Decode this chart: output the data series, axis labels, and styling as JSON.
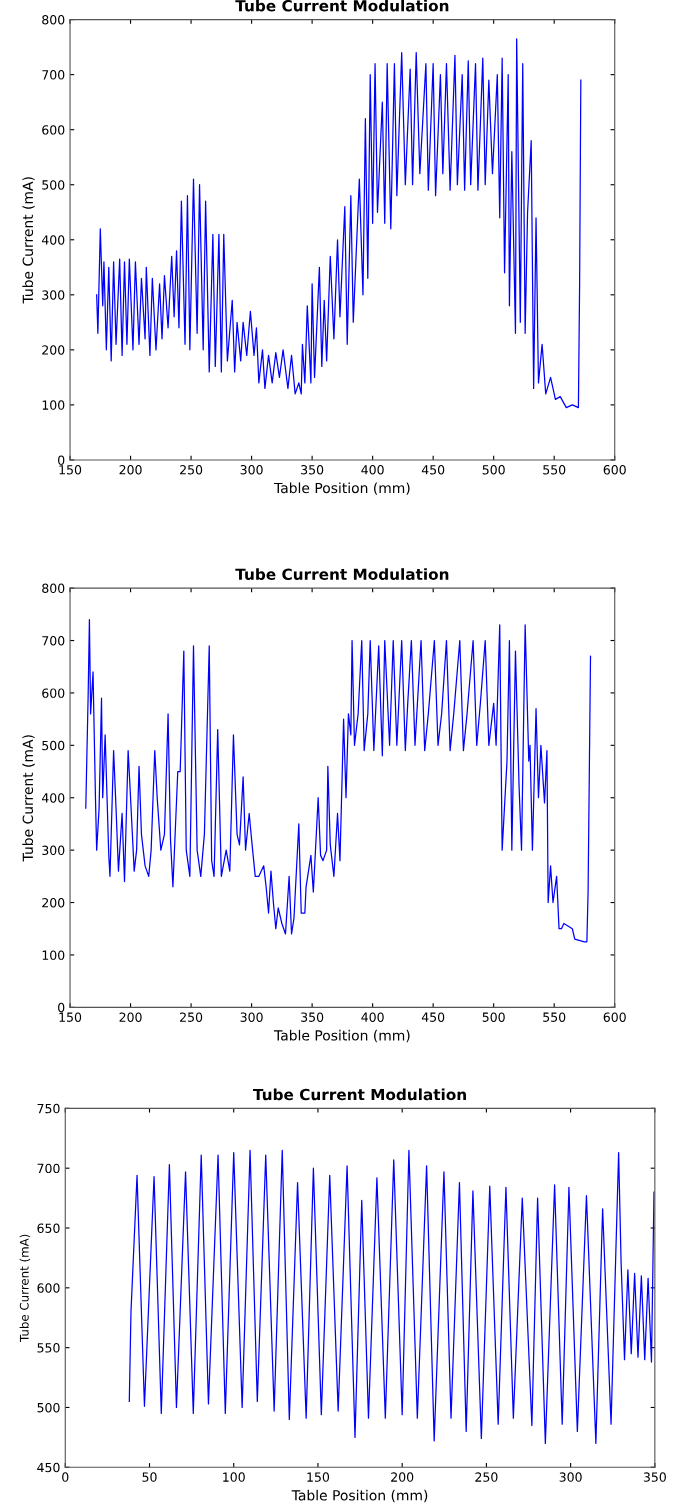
{
  "chart_data": [
    {
      "type": "line",
      "title": "Tube Current Modulation",
      "xlabel": "Table Position (mm)",
      "ylabel": "Tube Current (mA)",
      "xlim": [
        150,
        600
      ],
      "ylim": [
        0,
        800
      ],
      "xticks": [
        150,
        200,
        250,
        300,
        350,
        400,
        450,
        500,
        550,
        600
      ],
      "yticks": [
        0,
        100,
        200,
        300,
        400,
        500,
        600,
        700,
        800
      ],
      "series": [
        {
          "color": "#0000ff",
          "x": [
            172,
            173,
            175,
            177,
            178,
            180,
            182,
            184,
            186,
            188,
            191,
            193,
            195,
            197,
            199,
            202,
            204,
            207,
            209,
            212,
            213,
            216,
            218,
            221,
            224,
            226,
            228,
            231,
            234,
            236,
            238,
            240,
            242,
            245,
            247,
            249,
            252,
            255,
            257,
            260,
            262,
            265,
            268,
            270,
            273,
            275,
            277,
            280,
            284,
            286,
            288,
            291,
            293,
            296,
            299,
            302,
            304,
            306,
            309,
            311,
            314,
            317,
            320,
            323,
            326,
            330,
            333,
            336,
            339,
            341,
            342,
            344,
            346,
            349,
            350,
            352,
            356,
            358,
            360,
            362,
            365,
            368,
            371,
            373,
            377,
            379,
            382,
            384,
            389,
            392,
            394,
            396,
            398,
            400,
            402,
            404,
            408,
            410,
            412,
            415,
            418,
            420,
            424,
            427,
            431,
            433,
            436,
            439,
            444,
            446,
            450,
            452,
            456,
            458,
            461,
            464,
            468,
            470,
            474,
            476,
            479,
            481,
            485,
            487,
            491,
            493,
            496,
            499,
            503,
            505,
            507,
            509,
            512,
            513,
            515,
            518,
            519,
            522,
            524,
            526,
            528,
            531,
            533,
            535,
            537,
            540,
            543,
            547,
            551,
            555,
            560,
            565,
            570,
            571,
            572
          ],
          "values": [
            300,
            230,
            420,
            280,
            360,
            200,
            350,
            180,
            360,
            210,
            365,
            190,
            360,
            210,
            365,
            200,
            360,
            210,
            330,
            220,
            350,
            190,
            330,
            200,
            320,
            220,
            335,
            240,
            370,
            260,
            380,
            240,
            470,
            210,
            480,
            200,
            510,
            230,
            500,
            200,
            470,
            160,
            410,
            170,
            410,
            160,
            410,
            180,
            290,
            160,
            250,
            180,
            250,
            190,
            270,
            190,
            240,
            140,
            200,
            130,
            190,
            140,
            195,
            150,
            200,
            130,
            190,
            120,
            140,
            120,
            210,
            140,
            280,
            140,
            320,
            150,
            350,
            170,
            290,
            180,
            370,
            220,
            400,
            260,
            460,
            210,
            480,
            250,
            510,
            300,
            620,
            330,
            700,
            430,
            720,
            450,
            650,
            430,
            720,
            420,
            720,
            480,
            740,
            500,
            710,
            500,
            740,
            520,
            720,
            490,
            720,
            480,
            700,
            520,
            720,
            490,
            735,
            500,
            700,
            490,
            725,
            500,
            720,
            490,
            730,
            500,
            690,
            520,
            700,
            440,
            730,
            340,
            700,
            280,
            560,
            230,
            765,
            250,
            720,
            230,
            450,
            580,
            130,
            440,
            140,
            210,
            120,
            150,
            110,
            115,
            95,
            100,
            95,
            320,
            690
          ]
        }
      ]
    },
    {
      "type": "line",
      "title": "Tube Current Modulation",
      "xlabel": "Table Position (mm)",
      "ylabel": "Tube Current (mA)",
      "xlim": [
        150,
        600
      ],
      "ylim": [
        0,
        800
      ],
      "xticks": [
        150,
        200,
        250,
        300,
        350,
        400,
        450,
        500,
        550,
        600
      ],
      "yticks": [
        0,
        100,
        200,
        300,
        400,
        500,
        600,
        700,
        800
      ],
      "series": [
        {
          "color": "#0000ff",
          "x": [
            163,
            165,
            166,
            167,
            169,
            171,
            172,
            174,
            176,
            177,
            179,
            182,
            183,
            186,
            188,
            190,
            193,
            195,
            198,
            200,
            203,
            205,
            207,
            209,
            212,
            215,
            217,
            220,
            222,
            225,
            228,
            231,
            233,
            235,
            239,
            241,
            244,
            246,
            249,
            252,
            255,
            258,
            261,
            265,
            267,
            269,
            272,
            275,
            279,
            282,
            285,
            288,
            290,
            293,
            295,
            298,
            300,
            303,
            306,
            310,
            312,
            314,
            316,
            318,
            320,
            322,
            325,
            328,
            331,
            333,
            335,
            339,
            341,
            344,
            345,
            349,
            351,
            355,
            357,
            359,
            362,
            363,
            365,
            368,
            371,
            373,
            376,
            378,
            380,
            382,
            383,
            385,
            388,
            391,
            393,
            396,
            398,
            401,
            405,
            408,
            410,
            414,
            417,
            420,
            424,
            427,
            429,
            432,
            435,
            440,
            443,
            446,
            451,
            454,
            457,
            461,
            464,
            467,
            472,
            475,
            478,
            483,
            486,
            489,
            493,
            496,
            500,
            502,
            505,
            507,
            511,
            513,
            515,
            518,
            521,
            523,
            526,
            529,
            530,
            532,
            535,
            537,
            539,
            542,
            544,
            545,
            547,
            549,
            552,
            554,
            556,
            558,
            565,
            567,
            575,
            577,
            578,
            580
          ],
          "values": [
            380,
            600,
            740,
            560,
            640,
            400,
            300,
            380,
            590,
            400,
            520,
            290,
            250,
            490,
            380,
            260,
            370,
            240,
            490,
            400,
            260,
            300,
            460,
            330,
            270,
            250,
            300,
            490,
            400,
            300,
            330,
            560,
            320,
            230,
            450,
            450,
            680,
            300,
            250,
            690,
            300,
            250,
            330,
            690,
            280,
            250,
            530,
            250,
            300,
            260,
            520,
            330,
            310,
            440,
            300,
            370,
            320,
            250,
            250,
            270,
            230,
            180,
            260,
            200,
            150,
            190,
            160,
            140,
            250,
            140,
            170,
            350,
            180,
            180,
            230,
            290,
            220,
            400,
            290,
            280,
            300,
            460,
            310,
            250,
            370,
            280,
            550,
            400,
            560,
            520,
            700,
            500,
            560,
            700,
            490,
            560,
            700,
            490,
            690,
            480,
            700,
            500,
            700,
            500,
            700,
            490,
            580,
            700,
            500,
            700,
            490,
            560,
            700,
            500,
            560,
            700,
            490,
            560,
            700,
            490,
            560,
            700,
            500,
            580,
            700,
            500,
            580,
            500,
            730,
            300,
            470,
            700,
            300,
            680,
            420,
            300,
            730,
            470,
            500,
            300,
            570,
            400,
            500,
            390,
            490,
            200,
            270,
            200,
            250,
            150,
            150,
            160,
            150,
            130,
            125,
            125,
            220,
            670
          ]
        }
      ]
    },
    {
      "type": "line",
      "title": "Tube Current Modulation",
      "xlabel": "Table Position (mm)",
      "ylabel": "Tube Current (mA)",
      "xlim": [
        0,
        350
      ],
      "ylim": [
        450,
        750
      ],
      "xticks": [
        0,
        50,
        100,
        150,
        200,
        250,
        300,
        350
      ],
      "yticks": [
        450,
        500,
        550,
        600,
        650,
        700,
        750
      ],
      "series": [
        {
          "color": "#0000ff",
          "x": [
            38,
            39,
            42.6,
            47,
            52.7,
            57,
            61.8,
            66,
            71.4,
            76,
            80.7,
            85,
            90.7,
            95,
            100,
            105,
            109.7,
            114,
            119,
            124,
            128.8,
            133,
            137.9,
            143,
            147.3,
            152,
            157,
            162,
            167.3,
            172,
            176,
            180,
            185,
            190,
            195,
            200,
            204,
            209,
            214.5,
            219,
            224.8,
            229,
            234,
            238,
            242,
            247,
            252,
            257,
            261.6,
            266,
            271.3,
            277,
            280.4,
            285,
            290.5,
            295,
            299,
            304,
            309.4,
            315,
            319,
            324,
            328.5,
            330,
            332,
            334,
            336,
            338,
            340,
            342,
            344,
            346,
            348,
            349.5
          ],
          "values": [
            505,
            580,
            694,
            501,
            693,
            495,
            703,
            500,
            697,
            495,
            711,
            503,
            711,
            495,
            713,
            500,
            715,
            505,
            711,
            497,
            715,
            490,
            688,
            491,
            700,
            494,
            694,
            497,
            702,
            475,
            673,
            491,
            692,
            491,
            707,
            494,
            715,
            491,
            702,
            472,
            697,
            491,
            688,
            480,
            681,
            474,
            685,
            486,
            684,
            491,
            675,
            485,
            675,
            470,
            686,
            486,
            684,
            480,
            677,
            470,
            666,
            486,
            713,
            620,
            540,
            615,
            545,
            612,
            542,
            610,
            540,
            608,
            538,
            680
          ]
        }
      ]
    }
  ]
}
